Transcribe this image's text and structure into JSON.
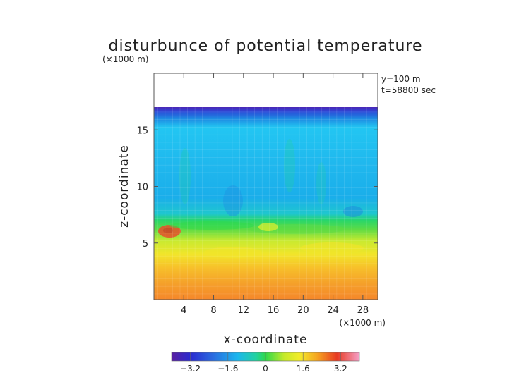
{
  "chart_data": {
    "type": "heatmap",
    "title": "disturbunce of potential temperature",
    "y_unit_note": "(×1000 m)",
    "x_unit_note": "(×1000 m)",
    "annotation": [
      "y=100 m",
      "t=58800 sec"
    ],
    "xlabel": "x-coordinate",
    "ylabel": "z-coordinate",
    "xlim": [
      0,
      30
    ],
    "ylim": [
      0,
      20
    ],
    "x_ticks": [
      4,
      8,
      12,
      16,
      20,
      24,
      28
    ],
    "y_ticks": [
      5,
      10,
      15
    ],
    "data_top_z": 17,
    "colorbar": {
      "range": [
        -4.0,
        4.0
      ],
      "ticks": [
        -3.2,
        -1.6,
        0,
        1.6,
        3.2
      ],
      "tick_labels": [
        "−3.2",
        "−1.6",
        "0",
        "1.6",
        "3.2"
      ]
    },
    "colors": {
      "violet": "#5a1fa0",
      "blue": "#2a4bd8",
      "sky": "#1aaeea",
      "cyan": "#22c8f2",
      "green": "#2ed94a",
      "yellow": "#f2ec2a",
      "orange": "#f59a20",
      "red": "#e83a22",
      "pink": "#f5a0c8"
    }
  }
}
